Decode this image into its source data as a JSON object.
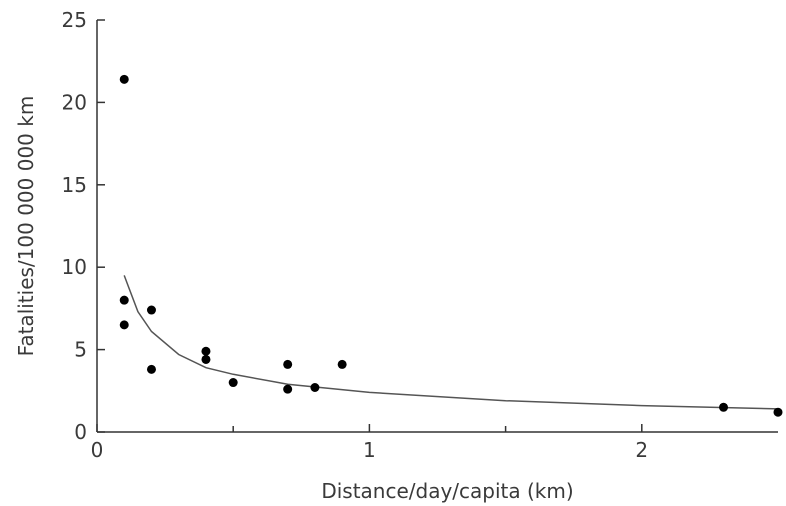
{
  "chart_data": {
    "type": "scatter",
    "title": "",
    "xlabel": "Distance/day/capita (km)",
    "ylabel": "Fatalities/100 000 000 km",
    "xlim": [
      0,
      2.5
    ],
    "ylim": [
      0,
      25
    ],
    "xticks_major": [
      0,
      1,
      2
    ],
    "xticks_minor": [
      0.5,
      1.5
    ],
    "yticks": [
      0,
      5,
      10,
      15,
      20,
      25
    ],
    "grid": false,
    "legend": "none",
    "series": [
      {
        "points": [
          {
            "x": 0.1,
            "y": 21.4
          },
          {
            "x": 0.1,
            "y": 8.0
          },
          {
            "x": 0.1,
            "y": 6.5
          },
          {
            "x": 0.2,
            "y": 7.4
          },
          {
            "x": 0.2,
            "y": 3.8
          },
          {
            "x": 0.4,
            "y": 4.9
          },
          {
            "x": 0.4,
            "y": 4.4
          },
          {
            "x": 0.5,
            "y": 3.0
          },
          {
            "x": 0.7,
            "y": 4.1
          },
          {
            "x": 0.7,
            "y": 2.6
          },
          {
            "x": 0.8,
            "y": 2.7
          },
          {
            "x": 0.9,
            "y": 4.1
          },
          {
            "x": 2.3,
            "y": 1.5
          },
          {
            "x": 2.5,
            "y": 1.2
          }
        ]
      }
    ],
    "trend_curve": {
      "type": "power",
      "x": [
        0.1,
        0.15,
        0.2,
        0.3,
        0.4,
        0.5,
        0.7,
        1.0,
        1.5,
        2.0,
        2.5
      ],
      "y": [
        9.5,
        7.3,
        6.1,
        4.7,
        3.9,
        3.5,
        2.9,
        2.4,
        1.9,
        1.6,
        1.4
      ]
    },
    "colors": {
      "points": "#000000",
      "curve": "#555555",
      "axis": "#333333",
      "text": "#3a3a3a"
    }
  }
}
